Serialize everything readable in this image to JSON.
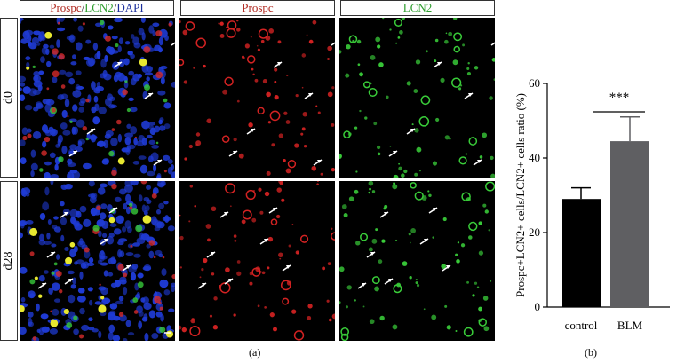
{
  "figure_a": {
    "headers": [
      {
        "parts": [
          {
            "text": "Prospc",
            "color": "#b0271e"
          },
          {
            "text": "/",
            "color": "#222222"
          },
          {
            "text": "LCN2",
            "color": "#2f9e2f"
          },
          {
            "text": "/",
            "color": "#222222"
          },
          {
            "text": "DAPI",
            "color": "#1c2f9c"
          }
        ]
      },
      {
        "parts": [
          {
            "text": "Prospc",
            "color": "#b0271e"
          }
        ]
      },
      {
        "parts": [
          {
            "text": "LCN2",
            "color": "#2f9e2f"
          }
        ]
      }
    ],
    "rows": [
      "d0",
      "d28"
    ],
    "caption": "(a)"
  },
  "chart_data": {
    "type": "bar",
    "categories": [
      "control",
      "BLM"
    ],
    "values": [
      29,
      44.5
    ],
    "errors": [
      3,
      6.5
    ],
    "bar_colors": [
      "#000000",
      "#5f5f62"
    ],
    "ylabel": "Prospc+LCN2+ cells/LCN2+ cells ratio (%)",
    "ylim": [
      0,
      60
    ],
    "yticks": [
      0,
      20,
      40,
      60
    ],
    "significance": "***",
    "caption": "(b)"
  }
}
